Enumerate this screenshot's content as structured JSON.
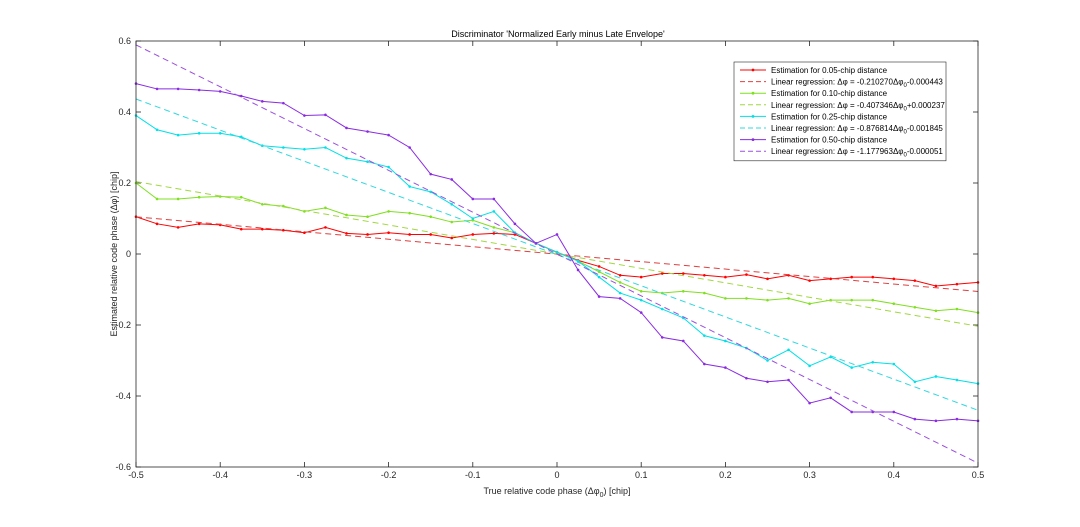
{
  "chart_data": {
    "type": "line",
    "title": "Discriminator 'Normalized Early minus Late Envelope'",
    "xlabel": {
      "main": "True relative code phase (Δφ",
      "sub": "0",
      "tail": ") [chip]"
    },
    "ylabel": "Estimated relative code phase (Δφ) [chip]",
    "xlim": [
      -0.5,
      0.5
    ],
    "ylim": [
      -0.6,
      0.6
    ],
    "xticks": [
      -0.5,
      -0.4,
      -0.3,
      -0.2,
      -0.1,
      0,
      0.1,
      0.2,
      0.3,
      0.4,
      0.5
    ],
    "yticks": [
      -0.6,
      -0.4,
      -0.2,
      0,
      0.2,
      0.4,
      0.6
    ],
    "xtick_labels": [
      "-0.5",
      "-0.4",
      "-0.3",
      "-0.2",
      "-0.1",
      "0",
      "0.1",
      "0.2",
      "0.3",
      "0.4",
      "0.5"
    ],
    "ytick_labels": [
      "-0.6",
      "-0.4",
      "-0.2",
      "0",
      "0.2",
      "0.4",
      "0.6"
    ],
    "grid": false,
    "legend_position": "top-right",
    "x": [
      -0.5,
      -0.475,
      -0.45,
      -0.425,
      -0.4,
      -0.375,
      -0.35,
      -0.325,
      -0.3,
      -0.275,
      -0.25,
      -0.225,
      -0.2,
      -0.175,
      -0.15,
      -0.125,
      -0.1,
      -0.075,
      -0.05,
      -0.025,
      0,
      0.025,
      0.05,
      0.075,
      0.1,
      0.125,
      0.15,
      0.175,
      0.2,
      0.225,
      0.25,
      0.275,
      0.3,
      0.325,
      0.35,
      0.375,
      0.4,
      0.425,
      0.45,
      0.475,
      0.5
    ],
    "series": [
      {
        "name": "Estimation for 0.05-chip distance",
        "color": "#ff0000",
        "values": [
          0.105,
          0.085,
          0.075,
          0.085,
          0.082,
          0.07,
          0.07,
          0.067,
          0.06,
          0.075,
          0.058,
          0.055,
          0.06,
          0.055,
          0.055,
          0.045,
          0.055,
          0.058,
          0.055,
          0.03,
          0.005,
          -0.018,
          -0.035,
          -0.06,
          -0.065,
          -0.055,
          -0.055,
          -0.06,
          -0.065,
          -0.058,
          -0.07,
          -0.06,
          -0.075,
          -0.07,
          -0.065,
          -0.065,
          -0.07,
          -0.075,
          -0.09,
          -0.085,
          -0.08
        ]
      },
      {
        "name": "Linear regression: Δφ = -0.210270Δφ0-0.000443",
        "legend_parts": [
          "Linear regression: Δφ = -0.210270Δφ",
          "0",
          "-0.000443"
        ],
        "color": "#e04040",
        "dashed": true,
        "slope": -0.21027,
        "intercept": -0.000443
      },
      {
        "name": "Estimation for 0.10-chip distance",
        "color": "#7fe020",
        "values": [
          0.2,
          0.155,
          0.155,
          0.16,
          0.162,
          0.16,
          0.14,
          0.135,
          0.12,
          0.13,
          0.11,
          0.105,
          0.12,
          0.115,
          0.105,
          0.09,
          0.095,
          0.075,
          0.06,
          0.03,
          0.005,
          -0.02,
          -0.05,
          -0.08,
          -0.105,
          -0.11,
          -0.105,
          -0.11,
          -0.125,
          -0.125,
          -0.13,
          -0.125,
          -0.14,
          -0.13,
          -0.13,
          -0.13,
          -0.14,
          -0.15,
          -0.16,
          -0.155,
          -0.165
        ]
      },
      {
        "name": "Linear regression: Δφ = -0.407346Δφ0+0.000237",
        "legend_parts": [
          "Linear regression: Δφ = -0.407346Δφ",
          "0",
          "+0.000237"
        ],
        "color": "#a0d840",
        "dashed": true,
        "slope": -0.407346,
        "intercept": 0.000237
      },
      {
        "name": "Estimation for 0.25-chip distance",
        "color": "#00e0e8",
        "values": [
          0.39,
          0.35,
          0.335,
          0.34,
          0.34,
          0.33,
          0.305,
          0.3,
          0.295,
          0.3,
          0.27,
          0.26,
          0.245,
          0.19,
          0.175,
          0.14,
          0.1,
          0.12,
          0.06,
          0.03,
          0.005,
          -0.02,
          -0.065,
          -0.11,
          -0.13,
          -0.155,
          -0.18,
          -0.23,
          -0.245,
          -0.265,
          -0.3,
          -0.27,
          -0.315,
          -0.29,
          -0.32,
          -0.305,
          -0.31,
          -0.36,
          -0.345,
          -0.355,
          -0.365
        ]
      },
      {
        "name": "Linear regression: Δφ = -0.876814Δφ0-0.001845",
        "legend_parts": [
          "Linear regression: Δφ = -0.876814Δφ",
          "0",
          "-0.001845"
        ],
        "color": "#30d8e0",
        "dashed": true,
        "slope": -0.876814,
        "intercept": -0.001845
      },
      {
        "name": "Estimation for 0.50-chip distance",
        "color": "#8a2be2",
        "values": [
          0.48,
          0.465,
          0.465,
          0.462,
          0.458,
          0.445,
          0.43,
          0.425,
          0.39,
          0.392,
          0.355,
          0.345,
          0.335,
          0.3,
          0.225,
          0.21,
          0.155,
          0.155,
          0.085,
          0.03,
          0.055,
          -0.045,
          -0.12,
          -0.125,
          -0.165,
          -0.235,
          -0.245,
          -0.31,
          -0.32,
          -0.35,
          -0.36,
          -0.355,
          -0.42,
          -0.405,
          -0.445,
          -0.445,
          -0.445,
          -0.465,
          -0.47,
          -0.465,
          -0.47
        ]
      },
      {
        "name": "Linear regression: Δφ = -1.177963Δφ0-0.000051",
        "legend_parts": [
          "Linear regression: Δφ = -1.177963Δφ",
          "0",
          "-0.000051"
        ],
        "color": "#9a50e0",
        "dashed": true,
        "slope": -1.177963,
        "intercept": -5.1e-05
      }
    ]
  }
}
